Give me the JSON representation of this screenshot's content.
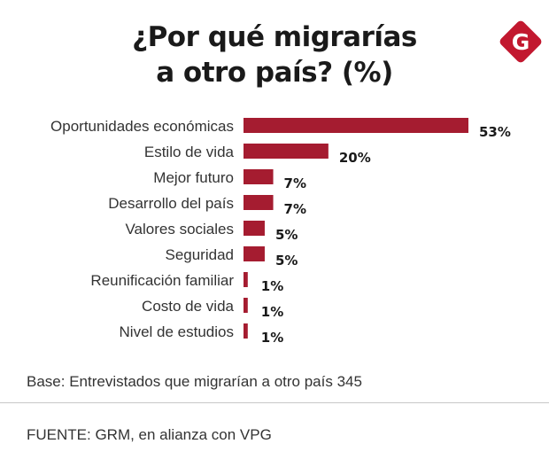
{
  "chart_data": {
    "type": "bar",
    "orientation": "horizontal",
    "title": [
      "¿Por qué migrarías",
      "a otro país? (%)"
    ],
    "categories": [
      "Oportunidades económicas",
      "Estilo de vida",
      "Mejor futuro",
      "Desarrollo del país",
      "Valores sociales",
      "Seguridad",
      "Reunificación familiar",
      "Costo de vida",
      "Nivel de estudios"
    ],
    "values": [
      53,
      20,
      7,
      7,
      5,
      5,
      1,
      1,
      1
    ],
    "value_labels": [
      "53%",
      "20%",
      "7%",
      "7%",
      "5%",
      "5%",
      "1%",
      "1%",
      "1%"
    ],
    "unit": "%",
    "xlim": [
      0,
      53
    ],
    "grid": false,
    "bar_color": "#a51c30"
  },
  "logo": {
    "letter": "G",
    "color": "#c2182f"
  },
  "notes": {
    "base": "Base: Entrevistados que migrarían a otro país 345",
    "source": "FUENTE: GRM, en alianza con VPG"
  }
}
